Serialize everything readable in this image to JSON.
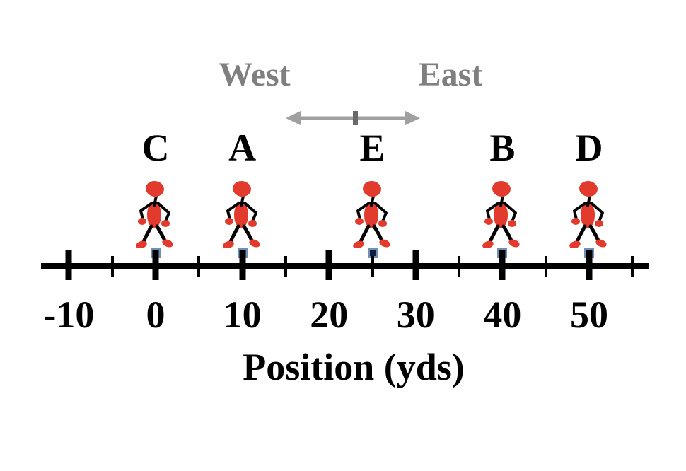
{
  "diagram": {
    "type": "position-number-line"
  },
  "compass": {
    "west_label": "West",
    "east_label": "East"
  },
  "axis": {
    "label": "Position (yds)",
    "major_ticks": [
      {
        "value": -10,
        "label": "-10"
      },
      {
        "value": 0,
        "label": "0"
      },
      {
        "value": 10,
        "label": "10"
      },
      {
        "value": 20,
        "label": "20"
      },
      {
        "value": 30,
        "label": "30"
      },
      {
        "value": 40,
        "label": "40"
      },
      {
        "value": 50,
        "label": "50"
      }
    ],
    "minor_tick_values": [
      -5,
      5,
      15,
      25,
      35,
      45,
      55
    ]
  },
  "walkers": [
    {
      "label": "C",
      "position_yds": 0
    },
    {
      "label": "A",
      "position_yds": 10
    },
    {
      "label": "E",
      "position_yds": 25
    },
    {
      "label": "B",
      "position_yds": 40
    },
    {
      "label": "D",
      "position_yds": 50
    }
  ],
  "colors": {
    "figure_red": "#e23a2c",
    "marker_fill": "#111c3c",
    "marker_border": "#7090b8",
    "axis_black": "#000000",
    "compass_text_gray": "#7f7f7f",
    "compass_arrow_gray": "#a0a0a0",
    "compass_arrow_tick_gray": "#696969"
  }
}
